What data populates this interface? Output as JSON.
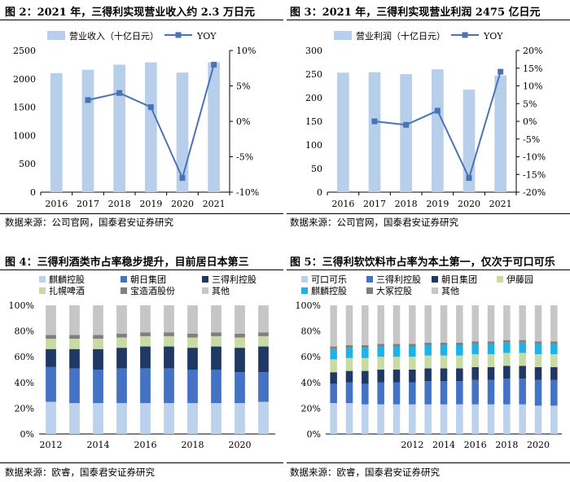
{
  "chart_data": [
    {
      "type": "bar",
      "id": "fig2",
      "title": "图 2：2021 年，三得利实现营业收入约 2.3 万日元",
      "source": "数据来源：公司官网，国泰君安证券研究",
      "categories": [
        "2016",
        "2017",
        "2018",
        "2019",
        "2020",
        "2021"
      ],
      "series": [
        {
          "name": "营业收入（十亿日元）",
          "axis": "left",
          "type": "bar",
          "values": [
            2100,
            2160,
            2250,
            2290,
            2110,
            2290
          ],
          "color": "#b7cfea"
        },
        {
          "name": "YOY",
          "axis": "right",
          "type": "line",
          "values": [
            null,
            3.0,
            4.0,
            2.0,
            -8.0,
            8.0
          ],
          "color": "#4a73b5"
        }
      ],
      "ylim_left": [
        0,
        2500
      ],
      "yticks_left": [
        "0",
        "500",
        "1000",
        "1500",
        "2000",
        "2500"
      ],
      "ylim_right": [
        -10,
        10
      ],
      "yticks_right": [
        "-10%",
        "-5%",
        "0%",
        "5%",
        "10%"
      ],
      "legend": "top"
    },
    {
      "type": "bar",
      "id": "fig3",
      "title": "图 3：2021 年，三得利实现营业利润 2475 亿日元",
      "source": "数据来源：公司官网，国泰君安证券研究",
      "categories": [
        "2016",
        "2017",
        "2018",
        "2019",
        "2020",
        "2021"
      ],
      "series": [
        {
          "name": "营业利润（十亿日元）",
          "axis": "left",
          "type": "bar",
          "values": [
            253,
            254,
            250,
            260,
            217,
            247
          ],
          "color": "#b7cfea"
        },
        {
          "name": "YOY",
          "axis": "right",
          "type": "line",
          "values": [
            null,
            0.0,
            -1.0,
            3.0,
            -16.0,
            14.0
          ],
          "color": "#4a73b5"
        }
      ],
      "ylim_left": [
        0,
        300
      ],
      "yticks_left": [
        "0",
        "50",
        "100",
        "150",
        "200",
        "250",
        "300"
      ],
      "ylim_right": [
        -20,
        20
      ],
      "yticks_right": [
        "-20%",
        "-15%",
        "-10%",
        "-5%",
        "0%",
        "5%",
        "10%",
        "15%",
        "20%"
      ],
      "legend": "top"
    },
    {
      "type": "bar",
      "stacked": true,
      "id": "fig4",
      "title": "图 4：三得利酒类市占率稳步提升，目前居日本第三",
      "source": "数据来源：欧睿，国泰君安证券研究",
      "categories": [
        "2012",
        "2013",
        "2014",
        "2015",
        "2016",
        "2017",
        "2018",
        "2019",
        "2020",
        "2021"
      ],
      "xtick_labels": [
        "2012",
        "",
        "2014",
        "",
        "2016",
        "",
        "2018",
        "",
        "2020",
        ""
      ],
      "ylim": [
        0,
        100
      ],
      "yticks": [
        "0%",
        "20%",
        "40%",
        "60%",
        "80%",
        "100%"
      ],
      "legend": "top",
      "series": [
        {
          "name": "麒麟控股",
          "color": "#bcd1ec",
          "values": [
            25,
            24,
            24,
            24,
            24,
            24,
            24,
            24,
            24,
            25
          ]
        },
        {
          "name": "朝日集团",
          "color": "#4472c4",
          "values": [
            27,
            27,
            26,
            27,
            27,
            27,
            26,
            26,
            24,
            23
          ]
        },
        {
          "name": "三得利控股",
          "color": "#203864",
          "values": [
            14,
            15,
            16,
            16,
            17,
            17,
            17,
            18,
            19,
            20
          ]
        },
        {
          "name": "扎幌啤酒",
          "color": "#c9dba4",
          "values": [
            8,
            8,
            8,
            8,
            8,
            8,
            8,
            8,
            8,
            8
          ]
        },
        {
          "name": "宝造酒股份",
          "color": "#7f7f7f",
          "values": [
            3,
            3,
            3,
            3,
            3,
            3,
            3,
            3,
            3,
            3
          ]
        },
        {
          "name": "其他",
          "color": "#c6c6c6",
          "values": [
            23,
            23,
            23,
            22,
            21,
            21,
            22,
            21,
            22,
            21
          ]
        }
      ]
    },
    {
      "type": "bar",
      "stacked": true,
      "id": "fig5",
      "title": "图 5：三得利软饮料市占率为本土第一，仅次于可口可乐",
      "source": "数据来源：欧睿，国泰君安证券研究",
      "categories": [
        "2007",
        "2008",
        "2009",
        "2010",
        "2011",
        "2012",
        "2013",
        "2014",
        "2015",
        "2016",
        "2017",
        "2018",
        "2019",
        "2020",
        "2021"
      ],
      "xtick_labels": [
        "",
        "",
        "",
        "",
        "",
        "2012",
        "",
        "2014",
        "",
        "2016",
        "",
        "2018",
        "",
        "2020",
        ""
      ],
      "ylim": [
        0,
        100
      ],
      "yticks": [
        "0%",
        "20%",
        "40%",
        "60%",
        "80%",
        "100%"
      ],
      "legend": "top",
      "series": [
        {
          "name": "可口可乐",
          "color": "#bcd1ec",
          "values": [
            24,
            24,
            23,
            23,
            23,
            23,
            23,
            23,
            23,
            23,
            23,
            23,
            23,
            22,
            22
          ]
        },
        {
          "name": "三得利控股",
          "color": "#4472c4",
          "values": [
            15,
            16,
            16,
            17,
            17,
            17,
            18,
            18,
            18,
            19,
            19,
            20,
            20,
            20,
            20
          ]
        },
        {
          "name": "朝日集团",
          "color": "#203864",
          "values": [
            9,
            9,
            10,
            10,
            10,
            10,
            10,
            10,
            10,
            10,
            10,
            10,
            10,
            10,
            10
          ]
        },
        {
          "name": "伊藤园",
          "color": "#c9dba4",
          "values": [
            10,
            10,
            10,
            10,
            10,
            10,
            10,
            10,
            10,
            10,
            10,
            10,
            10,
            10,
            10
          ]
        },
        {
          "name": "麒麟控股",
          "color": "#1fb2e8",
          "values": [
            8,
            8,
            8,
            8,
            8,
            8,
            8,
            8,
            8,
            8,
            8,
            8,
            8,
            8,
            8
          ]
        },
        {
          "name": "大冢控股",
          "color": "#7f7f7f",
          "values": [
            2,
            2,
            2,
            2,
            2,
            2,
            2,
            2,
            2,
            2,
            2,
            2,
            2,
            2,
            2
          ]
        },
        {
          "name": "其他",
          "color": "#c6c6c6",
          "values": [
            32,
            31,
            31,
            30,
            30,
            30,
            29,
            29,
            29,
            28,
            28,
            27,
            27,
            28,
            28
          ]
        }
      ]
    }
  ]
}
